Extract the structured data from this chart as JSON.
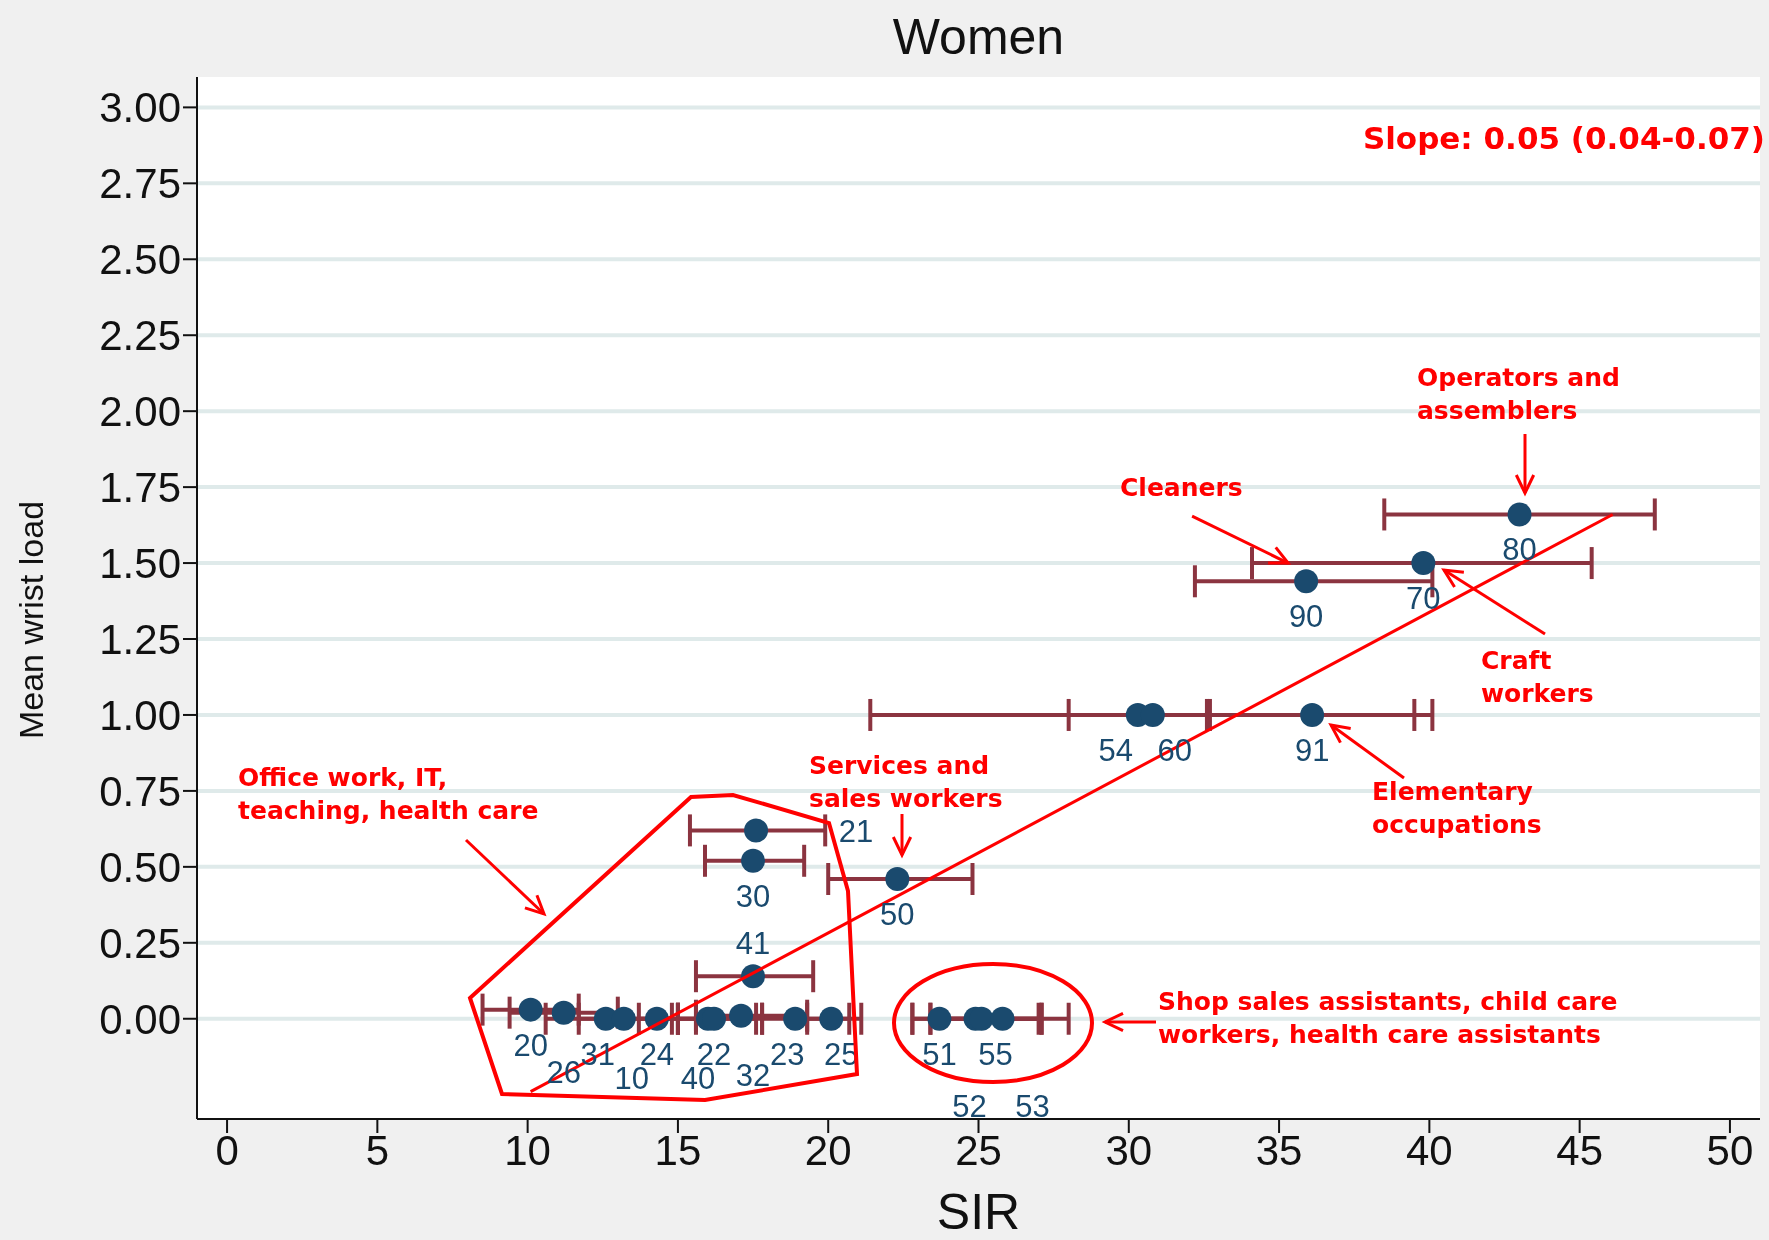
{
  "chart_data": {
    "type": "scatter",
    "title": "Women",
    "xlabel": "SIR",
    "ylabel": "Mean wrist load",
    "xlim": [
      -1,
      51
    ],
    "xticks": [
      0,
      5,
      10,
      15,
      20,
      25,
      30,
      35,
      40,
      45,
      50
    ],
    "ylim": [
      -0.33,
      3.1
    ],
    "yticks": [
      {
        "value": 0,
        "label": "0.00"
      },
      {
        "value": 0.25,
        "label": "0.25"
      },
      {
        "value": 0.5,
        "label": "0.50"
      },
      {
        "value": 0.75,
        "label": "0.75"
      },
      {
        "value": 1,
        "label": "1.00"
      },
      {
        "value": 1.25,
        "label": "1.25"
      },
      {
        "value": 1.5,
        "label": "1.50"
      },
      {
        "value": 1.75,
        "label": "1.75"
      },
      {
        "value": 2,
        "label": "2.00"
      },
      {
        "value": 2.25,
        "label": "2.25"
      },
      {
        "value": 2.5,
        "label": "2.50"
      },
      {
        "value": 2.75,
        "label": "2.75"
      },
      {
        "value": 3,
        "label": "3.00"
      }
    ],
    "grid": "y",
    "legend": false,
    "marker": "circle",
    "series": [
      {
        "type": "scatter",
        "color": "#1a4a6e",
        "x": [
          43.0,
          39.8,
          35.9,
          30.3,
          30.8,
          36.1,
          22.3,
          17.6,
          17.5,
          17.5,
          10.1,
          11.2,
          12.6,
          13.2,
          14.3,
          16.0,
          16.2,
          17.1,
          18.9,
          20.1,
          23.7,
          24.9,
          25.1,
          25.8
        ],
        "values": [
          1.66,
          1.5,
          1.44,
          1.0,
          1.0,
          1.0,
          0.46,
          0.62,
          0.52,
          0.14,
          0.03,
          0.02,
          0,
          0,
          0,
          0,
          0,
          0.01,
          0,
          0,
          0,
          0,
          0,
          0
        ],
        "xerrors": [
          [
            38.5,
            47.5
          ],
          [
            34.1,
            45.4
          ],
          [
            32.2,
            40.1
          ],
          [
            21.4,
            39.5
          ],
          [
            28.0,
            32.7
          ],
          [
            32.6,
            40.1
          ],
          [
            20.0,
            24.8
          ],
          [
            15.4,
            19.9
          ],
          [
            15.9,
            19.2
          ],
          [
            15.6,
            19.5
          ],
          [
            8.5,
            11.7
          ],
          [
            9.4,
            13.0
          ],
          [
            10.6,
            14.8
          ],
          [
            11.7,
            15.0
          ],
          [
            13.7,
            15.6
          ],
          [
            15.0,
            17.6
          ],
          [
            15.0,
            17.8
          ],
          [
            15.6,
            19.3
          ],
          [
            17.8,
            20.7
          ],
          [
            19.3,
            21.1
          ],
          [
            22.8,
            27.0
          ],
          [
            23.4,
            27.1
          ],
          [
            23.4,
            27.1
          ],
          [
            22.8,
            28.0
          ]
        ]
      },
      {
        "type": "line",
        "color": "#ff0000",
        "marker": "none",
        "x": [
          10.1,
          46.1
        ],
        "values": [
          -0.24,
          1.66
        ]
      }
    ],
    "annotations": [
      {
        "text": "80",
        "x": 43.0,
        "y": 1.66
      },
      {
        "text": "70",
        "x": 39.8,
        "y": 1.5
      },
      {
        "text": "90",
        "x": 35.9,
        "y": 1.44
      },
      {
        "text": "54",
        "x": 30.3,
        "y": 1.0
      },
      {
        "text": "60",
        "x": 30.8,
        "y": 1.0
      },
      {
        "text": "91",
        "x": 36.1,
        "y": 1.0
      },
      {
        "text": "50",
        "x": 22.3,
        "y": 0.46
      },
      {
        "text": "21",
        "x": 17.6,
        "y": 0.62
      },
      {
        "text": "30",
        "x": 17.5,
        "y": 0.52
      },
      {
        "text": "41",
        "x": 17.5,
        "y": 0.14
      },
      {
        "text": "20",
        "x": 10.1,
        "y": 0.03
      },
      {
        "text": "26",
        "x": 11.2,
        "y": 0.02
      },
      {
        "text": "31",
        "x": 12.6,
        "y": 0
      },
      {
        "text": "10",
        "x": 13.2,
        "y": 0
      },
      {
        "text": "24",
        "x": 14.3,
        "y": 0
      },
      {
        "text": "40",
        "x": 16.0,
        "y": 0
      },
      {
        "text": "22",
        "x": 16.2,
        "y": 0
      },
      {
        "text": "32",
        "x": 17.1,
        "y": 0.01
      },
      {
        "text": "23",
        "x": 18.9,
        "y": 0
      },
      {
        "text": "25",
        "x": 20.1,
        "y": 0
      },
      {
        "text": "51",
        "x": 23.7,
        "y": 0
      },
      {
        "text": "52",
        "x": 24.9,
        "y": 0
      },
      {
        "text": "55",
        "x": 25.1,
        "y": 0
      },
      {
        "text": "53",
        "x": 25.8,
        "y": 0
      },
      "Slope: 0.05 (0.04-0.07)",
      "Operators and assemblers",
      {
        "text": "Cleaners",
        "x": 35.3,
        "y": 1.5
      },
      "Craft workers",
      "Elementary occupations",
      "Services and sales workers",
      "Office work, IT, teaching, health care",
      "Shop sales assistants, child care workers,  health care assistants"
    ]
  }
}
